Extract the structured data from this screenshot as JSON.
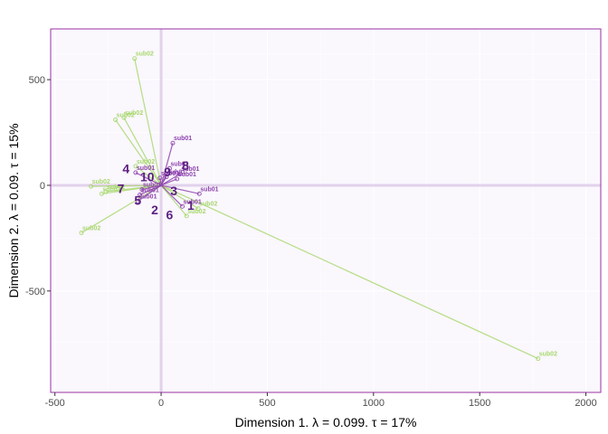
{
  "chart_data": {
    "type": "scatter",
    "title": "",
    "xlabel": "Dimension 1.   λ = 0.099.  τ = 17%",
    "ylabel": "Dimension 2.   λ = 0.09.  τ = 15%",
    "xlim": [
      -520,
      2070
    ],
    "ylim": [
      -980,
      740
    ],
    "x_ticks": [
      -500,
      0,
      500,
      1000,
      1500,
      2000
    ],
    "x_tick_labels": [
      "-500",
      "0",
      "500",
      "1000",
      "1500",
      "2000"
    ],
    "y_ticks": [
      -500,
      0,
      500
    ],
    "y_tick_labels": [
      "-500",
      "0",
      "500"
    ],
    "grid": true,
    "background": "#faf7fd",
    "panel_border_color": "#9a32a4",
    "origin_line_color": "#e2d2ea",
    "series": [
      {
        "name": "sub02",
        "color": "#a8d86e",
        "points": [
          {
            "x": 1775,
            "y": -820,
            "label": "sub02"
          },
          {
            "x": -125,
            "y": 600,
            "label": "sub02"
          },
          {
            "x": -175,
            "y": 320,
            "label": "sub02"
          },
          {
            "x": -215,
            "y": 310,
            "label": "sub02"
          },
          {
            "x": -120,
            "y": 90,
            "label": "sub02"
          },
          {
            "x": -330,
            "y": -5,
            "label": "sub02"
          },
          {
            "x": -260,
            "y": -30,
            "label": "sub02"
          },
          {
            "x": -280,
            "y": -40,
            "label": "sub02"
          },
          {
            "x": -375,
            "y": -225,
            "label": "sub02"
          },
          {
            "x": 175,
            "y": -110,
            "label": "sub02"
          },
          {
            "x": 120,
            "y": -145,
            "label": "sub02"
          }
        ]
      },
      {
        "name": "sub01",
        "color": "#8e44ad",
        "points": [
          {
            "x": 55,
            "y": 200,
            "label": "sub01"
          },
          {
            "x": 40,
            "y": 80,
            "label": "sub01"
          },
          {
            "x": 90,
            "y": 55,
            "label": "sub01"
          },
          {
            "x": 25,
            "y": 40,
            "label": "sub01"
          },
          {
            "x": -5,
            "y": 35,
            "label": "sub01"
          },
          {
            "x": -120,
            "y": 60,
            "label": "sub01"
          },
          {
            "x": 75,
            "y": 30,
            "label": "sub01"
          },
          {
            "x": -90,
            "y": -20,
            "label": "sub01"
          },
          {
            "x": -100,
            "y": -45,
            "label": "sub01"
          },
          {
            "x": -110,
            "y": -75,
            "label": "sub01"
          },
          {
            "x": 180,
            "y": -40,
            "label": "sub01"
          },
          {
            "x": 100,
            "y": -100,
            "label": "sub01"
          }
        ]
      }
    ],
    "items": [
      {
        "label": "1",
        "x": 140,
        "y": -95
      },
      {
        "label": "2",
        "x": -30,
        "y": -115
      },
      {
        "label": "3",
        "x": 60,
        "y": -25
      },
      {
        "label": "4",
        "x": -165,
        "y": 80
      },
      {
        "label": "5",
        "x": -110,
        "y": -70
      },
      {
        "label": "6",
        "x": 40,
        "y": -140
      },
      {
        "label": "7",
        "x": -190,
        "y": -15
      },
      {
        "label": "8",
        "x": 115,
        "y": 95
      },
      {
        "label": "9",
        "x": 30,
        "y": 65
      },
      {
        "label": "10",
        "x": -65,
        "y": 40
      }
    ],
    "item_label_color": "#5c1f82"
  }
}
